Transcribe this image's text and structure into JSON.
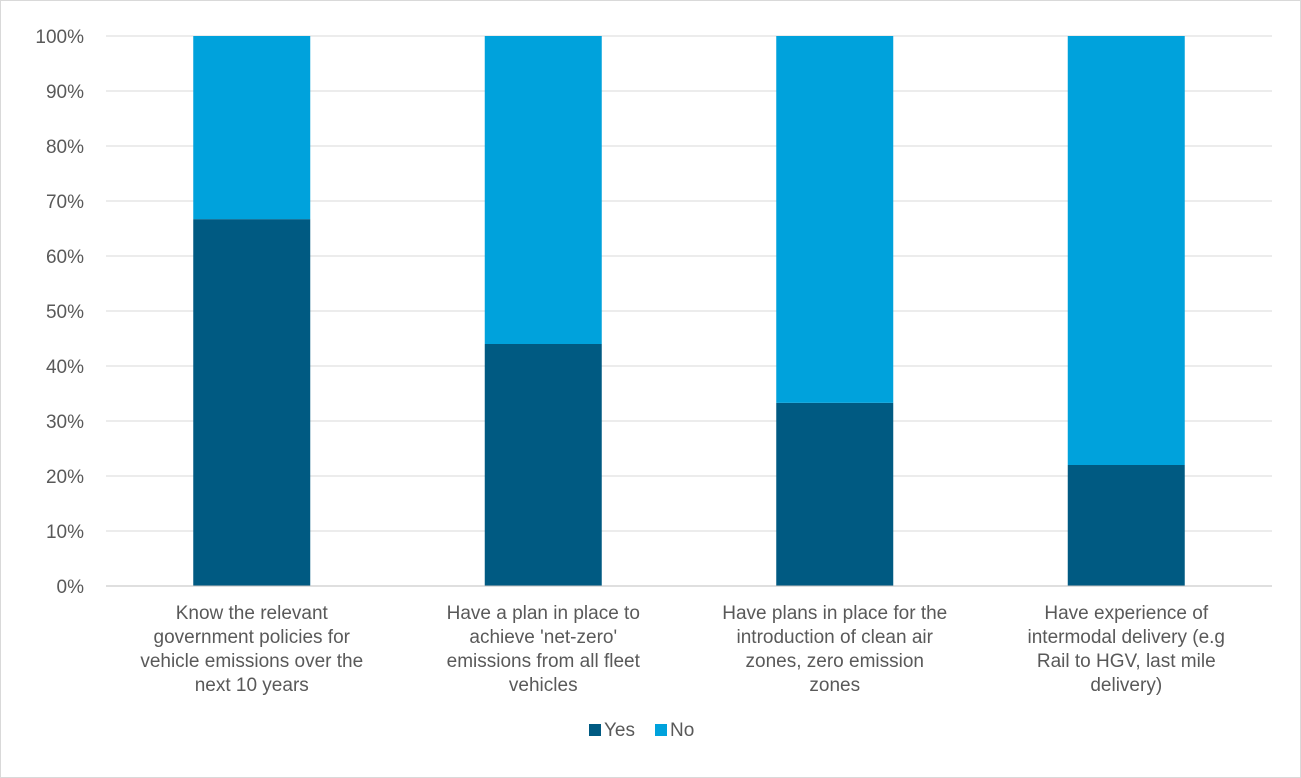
{
  "chart_data": {
    "type": "bar",
    "stacked": true,
    "percent_stacked": true,
    "categories": [
      [
        "Know the relevant",
        "government policies for",
        "vehicle emissions over the",
        "next 10 years"
      ],
      [
        "Have a plan in place to",
        "achieve 'net-zero'",
        "emissions from all  fleet",
        "vehicles"
      ],
      [
        "Have plans in place for the",
        "introduction of clean air",
        "zones, zero emission",
        "zones"
      ],
      [
        "Have experience of",
        "intermodal delivery (e.g",
        "Rail to HGV, last mile",
        "delivery)"
      ]
    ],
    "series": [
      {
        "name": "Yes",
        "color": "#005A82",
        "values": [
          66.7,
          44.0,
          33.3,
          22.0
        ]
      },
      {
        "name": "No",
        "color": "#00A2DC",
        "values": [
          33.3,
          56.0,
          66.7,
          78.0
        ]
      }
    ],
    "ylim": [
      0,
      100
    ],
    "yticks": [
      "0%",
      "10%",
      "20%",
      "30%",
      "40%",
      "50%",
      "60%",
      "70%",
      "80%",
      "90%",
      "100%"
    ],
    "grid": true,
    "legend_position": "bottom",
    "gridline_color": "#d9d9d9",
    "axis_color": "#bfbfbf"
  }
}
